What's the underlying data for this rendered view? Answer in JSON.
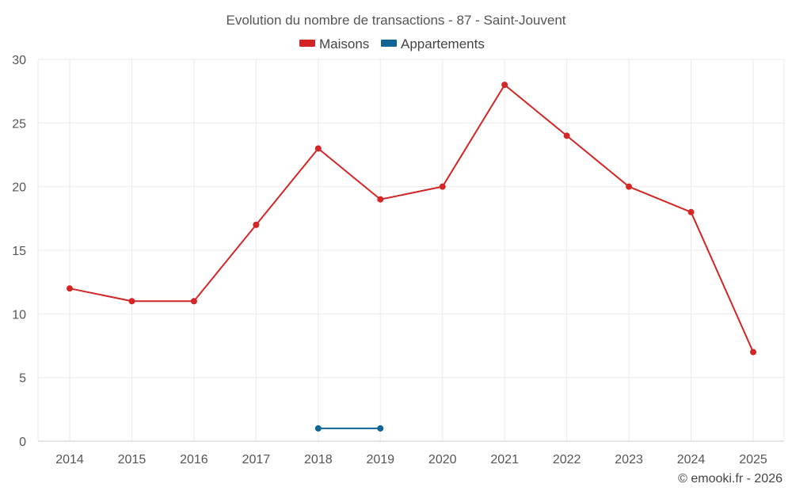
{
  "chart_data": {
    "type": "line",
    "title": "Evolution du nombre de transactions - 87 - Saint-Jouvent",
    "categories": [
      "2014",
      "2015",
      "2016",
      "2017",
      "2018",
      "2019",
      "2020",
      "2021",
      "2022",
      "2023",
      "2024",
      "2025"
    ],
    "series": [
      {
        "name": "Maisons",
        "color": "#d32626",
        "values": [
          12,
          11,
          11,
          17,
          23,
          19,
          20,
          28,
          24,
          20,
          18,
          7
        ]
      },
      {
        "name": "Appartements",
        "color": "#0f6496",
        "values": [
          null,
          null,
          null,
          null,
          1,
          1,
          null,
          null,
          null,
          null,
          null,
          null
        ]
      }
    ],
    "y_ticks": [
      "0",
      "5",
      "10",
      "15",
      "20",
      "25",
      "30"
    ],
    "ylim": [
      0,
      30
    ],
    "xlabel": "",
    "ylabel": "",
    "grid": true,
    "legend_position": "top-center"
  },
  "credit": "© emooki.fr - 2026"
}
